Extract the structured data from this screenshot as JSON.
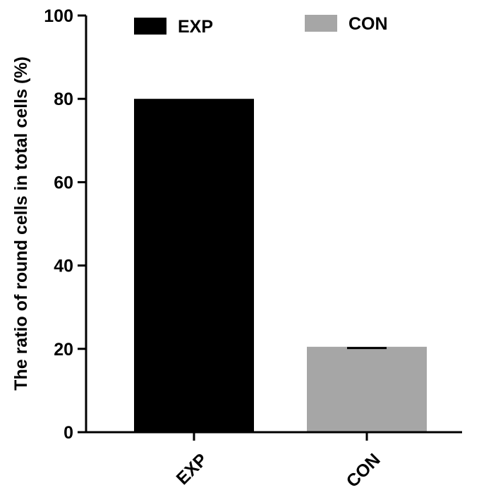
{
  "chart_data": {
    "type": "bar",
    "title": "",
    "xlabel": "",
    "ylabel": "The ratio of round cells in total cells (%)",
    "categories": [
      "EXP",
      "CON"
    ],
    "values": [
      80,
      20.5
    ],
    "errors": [
      0,
      0.3
    ],
    "ylim": [
      0,
      100
    ],
    "yticks": [
      0,
      20,
      40,
      60,
      80,
      100
    ],
    "colors": [
      "#000000",
      "#a6a6a6"
    ],
    "grid": false,
    "legend_position": "top",
    "legend": [
      {
        "label": "EXP",
        "color": "#000000"
      },
      {
        "label": "CON",
        "color": "#a6a6a6"
      }
    ]
  }
}
